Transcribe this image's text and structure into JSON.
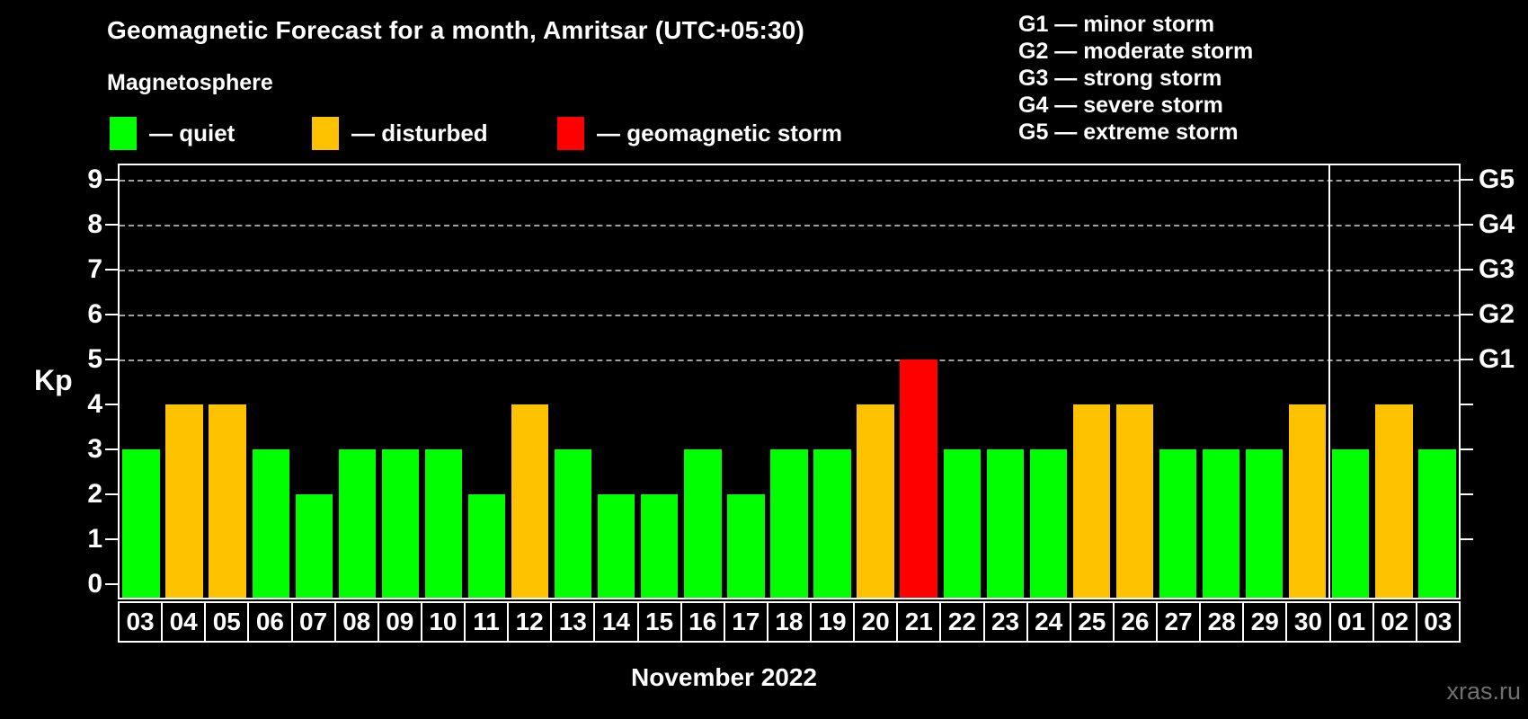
{
  "header": {
    "title": "Geomagnetic Forecast for a month, Amritsar (UTC+05:30)",
    "subtitle": "Magnetosphere"
  },
  "legend": {
    "items": [
      {
        "key": "quiet",
        "label": "— quiet",
        "color": "#00ff00"
      },
      {
        "key": "disturbed",
        "label": "— disturbed",
        "color": "#ffc200"
      },
      {
        "key": "storm",
        "label": "— geomagnetic storm",
        "color": "#ff0000"
      }
    ]
  },
  "storm_scale_legend": {
    "items": [
      "G1 — minor storm",
      "G2 — moderate storm",
      "G3 — strong storm",
      "G4 — severe storm",
      "G5 — extreme storm"
    ]
  },
  "chart_data": {
    "type": "bar",
    "title": "Geomagnetic Forecast for a month, Amritsar (UTC+05:30)",
    "xlabel": "November 2022",
    "ylabel": "Kp",
    "ylim": [
      0,
      9
    ],
    "yticks": [
      0,
      1,
      2,
      3,
      4,
      5,
      6,
      7,
      8,
      9
    ],
    "gridlines_at": [
      5,
      6,
      7,
      8,
      9
    ],
    "grid": "dashed horizontal lines at Kp 5-9 only",
    "legend_position": "top",
    "categories": [
      "03",
      "04",
      "05",
      "06",
      "07",
      "08",
      "09",
      "10",
      "11",
      "12",
      "13",
      "14",
      "15",
      "16",
      "17",
      "18",
      "19",
      "20",
      "21",
      "22",
      "23",
      "24",
      "25",
      "26",
      "27",
      "28",
      "29",
      "30",
      "01",
      "02",
      "03"
    ],
    "values": [
      3,
      4,
      4,
      3,
      2,
      3,
      3,
      3,
      2,
      4,
      3,
      2,
      2,
      3,
      2,
      3,
      3,
      4,
      5,
      3,
      3,
      3,
      4,
      4,
      3,
      3,
      3,
      4,
      3,
      4,
      3
    ],
    "statuses": [
      "quiet",
      "disturbed",
      "disturbed",
      "quiet",
      "quiet",
      "quiet",
      "quiet",
      "quiet",
      "quiet",
      "disturbed",
      "quiet",
      "quiet",
      "quiet",
      "quiet",
      "quiet",
      "quiet",
      "quiet",
      "disturbed",
      "storm",
      "quiet",
      "quiet",
      "quiet",
      "disturbed",
      "disturbed",
      "quiet",
      "quiet",
      "quiet",
      "disturbed",
      "quiet",
      "disturbed",
      "quiet"
    ],
    "colors": {
      "quiet": "#00ff00",
      "disturbed": "#ffc200",
      "storm": "#ff0000"
    },
    "right_axis_labels": [
      {
        "kp": 5,
        "label": "G1"
      },
      {
        "kp": 6,
        "label": "G2"
      },
      {
        "kp": 7,
        "label": "G3"
      },
      {
        "kp": 8,
        "label": "G4"
      },
      {
        "kp": 9,
        "label": "G5"
      }
    ],
    "month_separator_after_index": 27
  },
  "footer": {
    "xlabel": "November 2022",
    "watermark": "xras.ru"
  }
}
